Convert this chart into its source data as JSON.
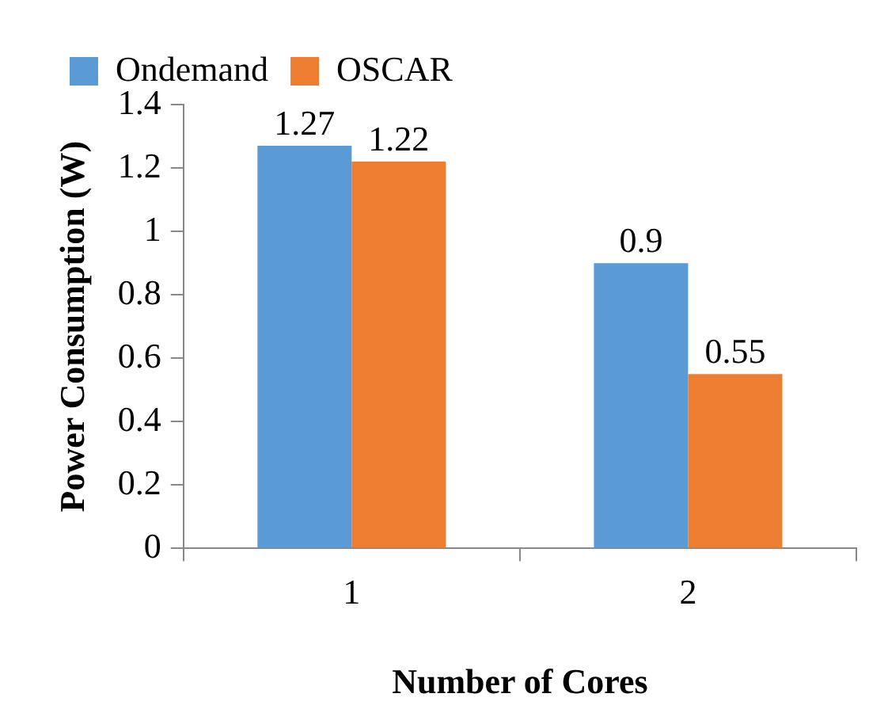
{
  "chart_data": {
    "type": "bar",
    "xlabel": "Number of Cores",
    "ylabel": "Power Consumption (W)",
    "categories": [
      "1",
      "2"
    ],
    "series": [
      {
        "name": "Ondemand",
        "color": "#5b9bd5",
        "values": [
          1.27,
          0.9
        ]
      },
      {
        "name": "OSCAR",
        "color": "#ed7d31",
        "values": [
          1.22,
          0.55
        ]
      }
    ],
    "ylim": [
      0,
      1.4
    ],
    "yticks": [
      0,
      0.2,
      0.4,
      0.6,
      0.8,
      1,
      1.2,
      1.4
    ],
    "grid": false,
    "legend": "top left",
    "data_labels": true
  }
}
